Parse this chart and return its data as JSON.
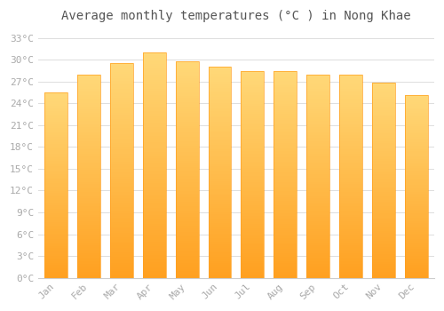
{
  "title": "Average monthly temperatures (°C ) in Nong Khae",
  "months": [
    "Jan",
    "Feb",
    "Mar",
    "Apr",
    "May",
    "Jun",
    "Jul",
    "Aug",
    "Sep",
    "Oct",
    "Nov",
    "Dec"
  ],
  "values": [
    25.5,
    28.0,
    29.5,
    31.0,
    29.8,
    29.0,
    28.5,
    28.5,
    28.0,
    28.0,
    26.8,
    25.2
  ],
  "bar_color_bottom": "#FFA020",
  "bar_color_top": "#FFD878",
  "background_color": "#ffffff",
  "grid_color": "#dddddd",
  "yticks": [
    0,
    3,
    6,
    9,
    12,
    15,
    18,
    21,
    24,
    27,
    30,
    33
  ],
  "ylim": [
    0,
    34.5
  ],
  "title_fontsize": 10,
  "tick_fontsize": 8,
  "tick_color": "#aaaaaa",
  "font_family": "monospace",
  "bar_width": 0.7,
  "n_gradient_steps": 100
}
